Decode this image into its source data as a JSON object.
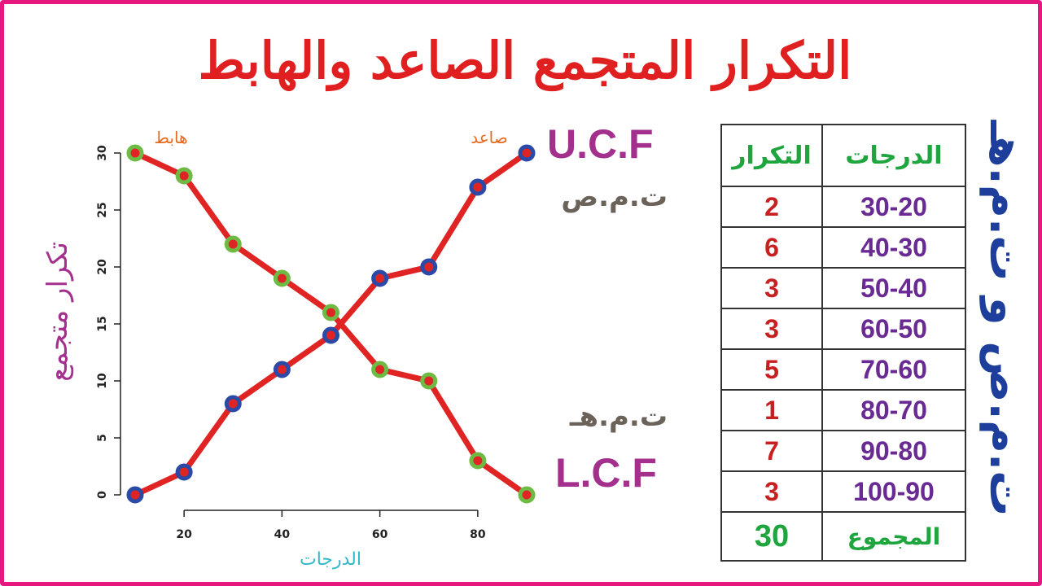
{
  "title": "التكرار المتجمع الصاعد والهابط",
  "labels": {
    "ucf": "U.C.F",
    "ucf_ar": "ت.م.ص",
    "lcf": "L.C.F",
    "lcf_ar": "ت.م.هـ",
    "side_vertical": "ت.م.ص و ت.م.هـ"
  },
  "colors": {
    "frame": "#e6177e",
    "title": "#e02020",
    "line": "#e02424",
    "ascending_marker": "#2b4aa8",
    "descending_marker": "#6dbb45",
    "x_title": "#33b8c8",
    "y_title": "#a4308e",
    "series_tag": "#e86a1e"
  },
  "table": {
    "header": {
      "grade": "الدرجات",
      "freq": "التكرار"
    },
    "rows": [
      {
        "grade": "30-20",
        "freq": "2"
      },
      {
        "grade": "40-30",
        "freq": "6"
      },
      {
        "grade": "50-40",
        "freq": "3"
      },
      {
        "grade": "60-50",
        "freq": "3"
      },
      {
        "grade": "70-60",
        "freq": "5"
      },
      {
        "grade": "80-70",
        "freq": "1"
      },
      {
        "grade": "90-80",
        "freq": "7"
      },
      {
        "grade": "100-90",
        "freq": "3"
      }
    ],
    "total": {
      "label": "المجموع",
      "value": "30"
    }
  },
  "chart_data": {
    "type": "line",
    "title": "",
    "xlabel": "الدرجات",
    "ylabel": "تكرار متجمع",
    "x_ticks": [
      20,
      40,
      60,
      80
    ],
    "y_ticks": [
      0,
      5,
      10,
      15,
      20,
      25,
      30
    ],
    "xlim": [
      10,
      90
    ],
    "ylim": [
      0,
      30
    ],
    "series": [
      {
        "name": "صاعد",
        "marker": "blue",
        "x": [
          10,
          20,
          30,
          40,
          50,
          60,
          70,
          80,
          90
        ],
        "y": [
          0,
          2,
          8,
          11,
          14,
          19,
          20,
          27,
          30
        ]
      },
      {
        "name": "هابط",
        "marker": "green",
        "x": [
          10,
          20,
          30,
          40,
          50,
          60,
          70,
          80,
          90
        ],
        "y": [
          30,
          28,
          22,
          19,
          16,
          11,
          10,
          3,
          0
        ]
      }
    ]
  }
}
